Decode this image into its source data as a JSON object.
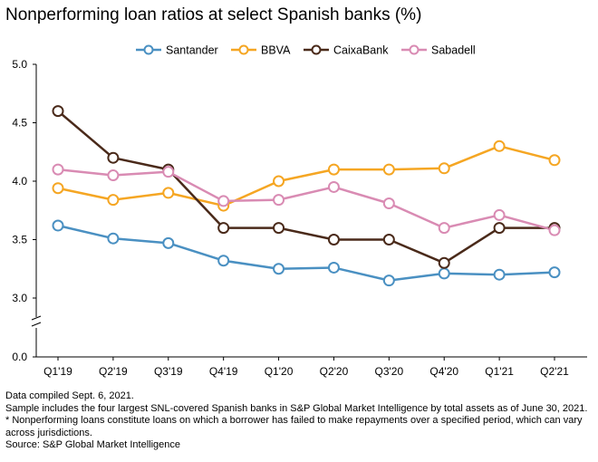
{
  "title": "Nonperforming loan ratios at select Spanish banks (%)",
  "chart_data": {
    "type": "line",
    "title": "Nonperforming loan ratios at select Spanish banks (%)",
    "categories": [
      "Q1'19",
      "Q2'19",
      "Q3'19",
      "Q4'19",
      "Q1'20",
      "Q2'20",
      "Q3'20",
      "Q4'20",
      "Q1'21",
      "Q2'21"
    ],
    "y_ticks": [
      "5.0",
      "4.5",
      "4.0",
      "3.5",
      "3.0",
      "0.0"
    ],
    "ylim_upper": [
      3.0,
      5.0
    ],
    "axis_break": "between 0.0 and 3.0",
    "grid": false,
    "legend_position": "top",
    "series": [
      {
        "name": "Santander",
        "color": "#4a90c2",
        "values": [
          3.62,
          3.51,
          3.47,
          3.32,
          3.25,
          3.26,
          3.15,
          3.21,
          3.2,
          3.22
        ]
      },
      {
        "name": "BBVA",
        "color": "#f5a623",
        "values": [
          3.94,
          3.84,
          3.9,
          3.79,
          4.0,
          4.1,
          4.1,
          4.11,
          4.3,
          4.18
        ]
      },
      {
        "name": "CaixaBank",
        "color": "#4a2a1a",
        "values": [
          4.6,
          4.2,
          4.1,
          3.6,
          3.6,
          3.5,
          3.5,
          3.3,
          3.6,
          3.6
        ]
      },
      {
        "name": "Sabadell",
        "color": "#d98bb3",
        "values": [
          4.1,
          4.05,
          4.08,
          3.83,
          3.84,
          3.95,
          3.81,
          3.6,
          3.71,
          3.58
        ]
      }
    ]
  },
  "notes": {
    "line1": "Data compiled Sept. 6, 2021.",
    "line2": "Sample includes the four largest SNL-covered Spanish banks in S&P Global Market Intelligence by total assets as of June 30, 2021.",
    "line3": "* Nonperforming loans constitute loans on which a borrower has failed to make repayments over a specified period, which can vary across jurisdictions.",
    "line4": "Source: S&P Global Market Intelligence"
  }
}
